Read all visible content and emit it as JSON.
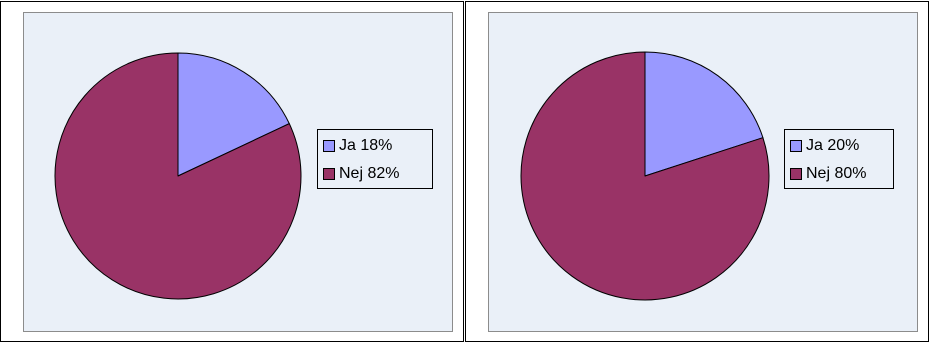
{
  "chart_data": [
    {
      "type": "pie",
      "title": "",
      "slices": [
        {
          "label": "Ja",
          "pct_label": "18%",
          "value": 18,
          "color": "#9999ff"
        },
        {
          "label": "Nej",
          "pct_label": "82%",
          "value": 82,
          "color": "#993366"
        }
      ],
      "legend_position": "right",
      "start_angle_deg": 0,
      "direction": "clockwise",
      "background": "#eaf0f8"
    },
    {
      "type": "pie",
      "title": "",
      "slices": [
        {
          "label": "Ja",
          "pct_label": "20%",
          "value": 20,
          "color": "#9999ff"
        },
        {
          "label": "Nej",
          "pct_label": "80%",
          "value": 80,
          "color": "#993366"
        }
      ],
      "legend_position": "right",
      "start_angle_deg": 0,
      "direction": "clockwise",
      "background": "#eaf0f8"
    }
  ]
}
